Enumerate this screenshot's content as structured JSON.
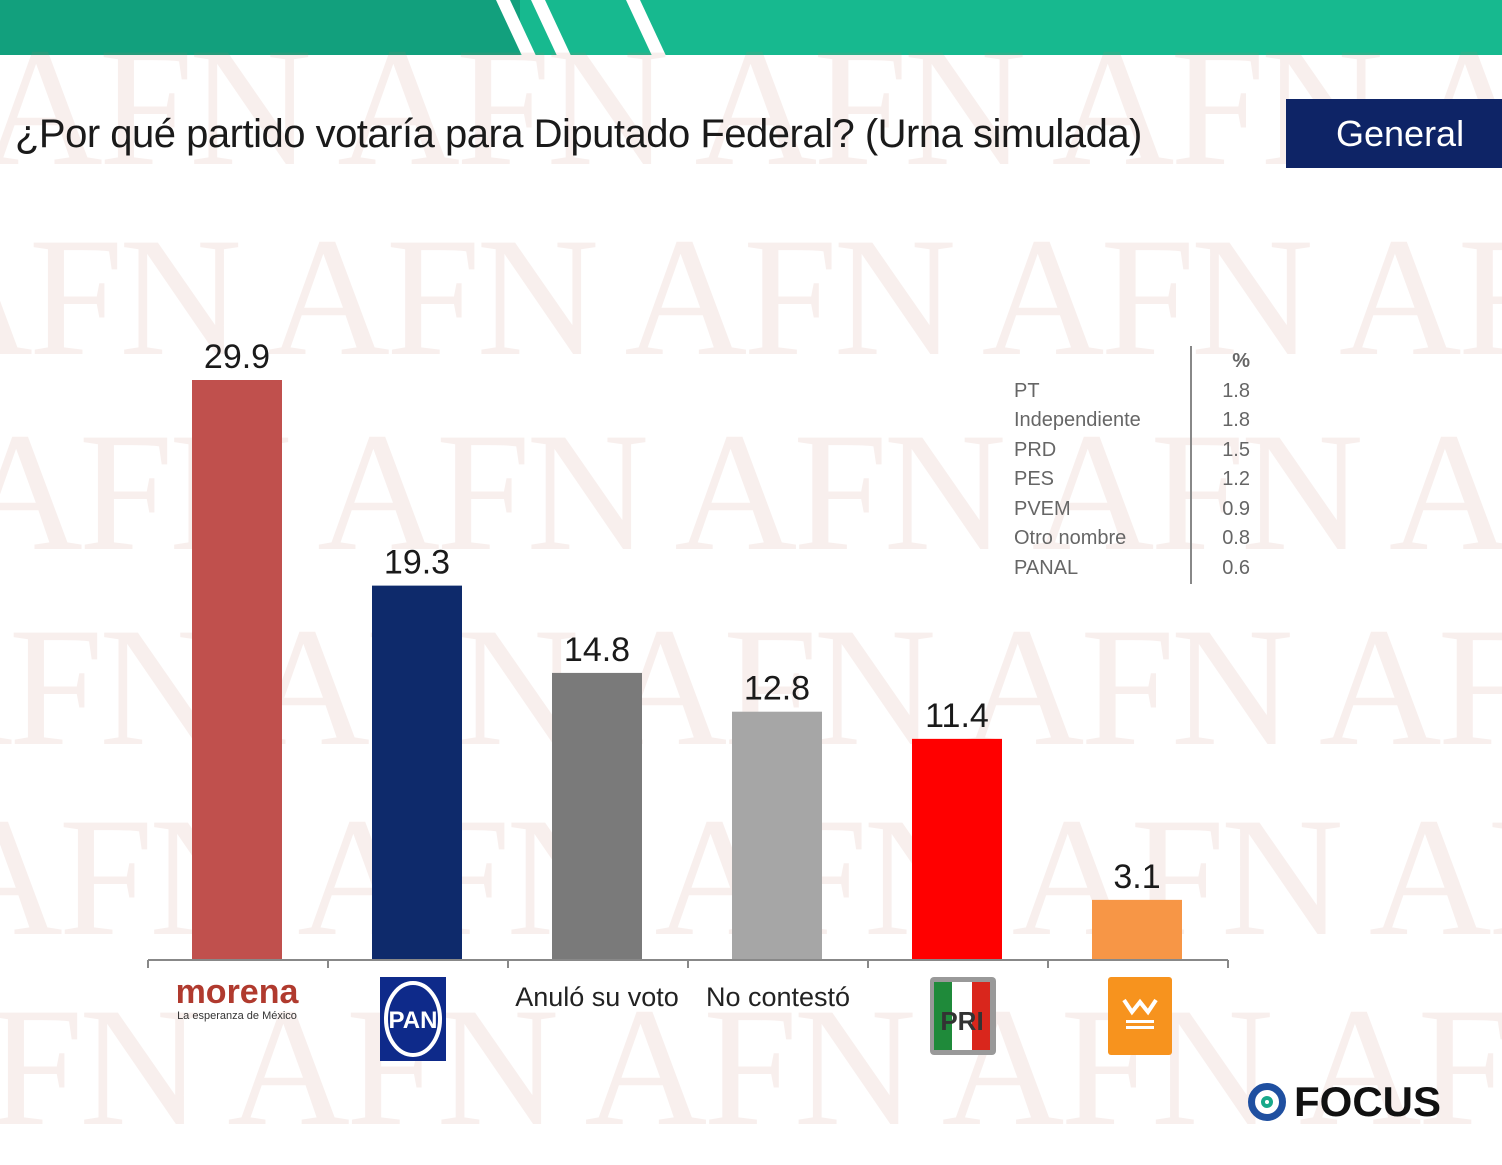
{
  "watermark": "AFN",
  "header": {
    "badge": "General"
  },
  "chart_data": {
    "type": "bar",
    "title": "¿Por qué partido votaría para Diputado Federal? (Urna simulada)",
    "categories": [
      "morena",
      "PAN",
      "Anuló su voto",
      "No contestó",
      "PRI",
      "Movimiento Ciudadano"
    ],
    "category_labels": {
      "morena": "morena",
      "morena_sub": "La esperanza de México",
      "pan": "PAN",
      "pri": "PRI",
      "anulo": "Anuló su voto",
      "no_contesto": "No contestó"
    },
    "values": [
      29.9,
      19.3,
      14.8,
      12.8,
      11.4,
      3.1
    ],
    "value_labels": [
      "29.9",
      "19.3",
      "14.8",
      "12.8",
      "11.4",
      "3.1"
    ],
    "colors": [
      "#c0504d",
      "#0e2a6b",
      "#7a7a7a",
      "#a6a6a6",
      "#ff0000",
      "#f79646"
    ],
    "ylim": [
      0,
      30
    ],
    "ylabel": "%",
    "grid": false
  },
  "others_table": {
    "header": "%",
    "rows": [
      {
        "name": "PT",
        "value": "1.8"
      },
      {
        "name": "Independiente",
        "value": "1.8"
      },
      {
        "name": "PRD",
        "value": "1.5"
      },
      {
        "name": "PES",
        "value": "1.2"
      },
      {
        "name": "PVEM",
        "value": "0.9"
      },
      {
        "name": "Otro nombre",
        "value": "0.8"
      },
      {
        "name": "PANAL",
        "value": "0.6"
      }
    ]
  },
  "footer": {
    "brand": "FOCUS"
  }
}
